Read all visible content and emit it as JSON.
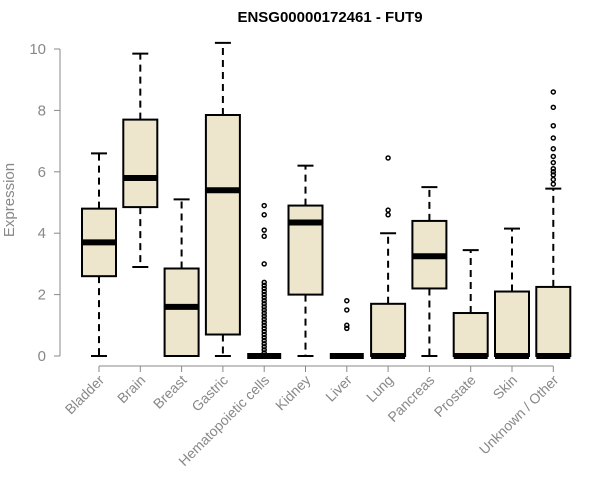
{
  "chart_data": {
    "type": "boxplot",
    "title": "ENSG00000172461 - FUT9",
    "ylabel": "Expression",
    "xlabel": "",
    "ylim": [
      0,
      10
    ],
    "yticks": [
      0,
      2,
      4,
      6,
      8,
      10
    ],
    "box_color": "#ede6cd",
    "categories": [
      "Bladder",
      "Brain",
      "Breast",
      "Gastric",
      "Hematopoietic cells",
      "Kidney",
      "Liver",
      "Lung",
      "Pancreas",
      "Prostate",
      "Skin",
      "Unknown / Other"
    ],
    "boxes": [
      {
        "min": 0,
        "q1": 2.6,
        "median": 3.7,
        "q3": 4.8,
        "max": 6.6,
        "outliers": []
      },
      {
        "min": 2.9,
        "q1": 4.85,
        "median": 5.8,
        "q3": 7.7,
        "max": 9.85,
        "outliers": []
      },
      {
        "min": 0,
        "q1": 0,
        "median": 1.6,
        "q3": 2.85,
        "max": 5.1,
        "outliers": []
      },
      {
        "min": 0,
        "q1": 0.7,
        "median": 5.4,
        "q3": 7.85,
        "max": 10.2,
        "outliers": []
      },
      {
        "min": 0,
        "q1": 0,
        "median": 0,
        "q3": 0,
        "max": 0,
        "outliers": [
          0.1,
          0.2,
          0.3,
          0.4,
          0.5,
          0.6,
          0.7,
          0.8,
          0.9,
          1.0,
          1.1,
          1.2,
          1.3,
          1.4,
          1.5,
          1.6,
          1.7,
          1.8,
          1.9,
          2.0,
          2.1,
          2.2,
          2.3,
          2.4,
          3.0,
          3.9,
          4.1,
          4.6,
          4.9
        ]
      },
      {
        "min": 0,
        "q1": 2.0,
        "median": 4.35,
        "q3": 4.9,
        "max": 6.2,
        "outliers": []
      },
      {
        "min": 0,
        "q1": 0,
        "median": 0,
        "q3": 0,
        "max": 0,
        "outliers": [
          0.9,
          1.0,
          1.5,
          1.8
        ]
      },
      {
        "min": 0,
        "q1": 0,
        "median": 0,
        "q3": 1.7,
        "max": 4.0,
        "outliers": [
          4.6,
          4.75,
          6.45
        ]
      },
      {
        "min": 0,
        "q1": 2.2,
        "median": 3.25,
        "q3": 4.4,
        "max": 5.5,
        "outliers": []
      },
      {
        "min": 0,
        "q1": 0,
        "median": 0,
        "q3": 1.4,
        "max": 3.45,
        "outliers": []
      },
      {
        "min": 0,
        "q1": 0,
        "median": 0,
        "q3": 2.1,
        "max": 4.15,
        "outliers": []
      },
      {
        "min": 0,
        "q1": 0,
        "median": 0,
        "q3": 2.25,
        "max": 5.45,
        "outliers": [
          5.6,
          5.75,
          5.9,
          6.0,
          6.1,
          6.3,
          6.5,
          6.75,
          7.1,
          7.5,
          8.1,
          8.6
        ]
      }
    ]
  }
}
